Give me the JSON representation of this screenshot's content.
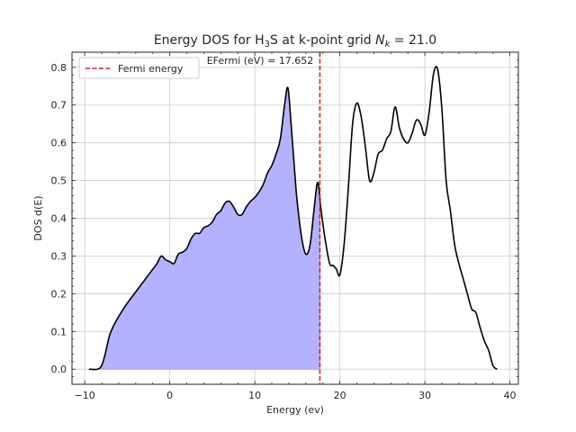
{
  "chart_data": {
    "type": "line",
    "title_parts": [
      "Energy DOS for H",
      "3",
      "S at k-point grid ",
      "N",
      "k",
      " = 21.0"
    ],
    "xlabel": "Energy (ev)",
    "ylabel": "DOS d(E)",
    "xlim": [
      -11.5,
      41
    ],
    "ylim": [
      -0.04,
      0.84
    ],
    "xticks": [
      -10,
      0,
      10,
      20,
      30,
      40
    ],
    "yticks": [
      0.0,
      0.1,
      0.2,
      0.3,
      0.4,
      0.5,
      0.6,
      0.7,
      0.8
    ],
    "grid": true,
    "legend": {
      "position": "top-left",
      "entries": [
        {
          "label": "Fermi energy",
          "color": "#e41a1c",
          "style": "dashed"
        }
      ]
    },
    "annotation": "EFermi (eV) = 17.652",
    "fermi_energy": 17.652,
    "colors": {
      "line": "#000000",
      "fill": "#b2b2ff",
      "fermi": "#e41a1c"
    },
    "series": [
      {
        "x": [
          -9.5,
          -8.5,
          -8.0,
          -7.6,
          -7.3,
          -7.0,
          -6.5,
          -6.0,
          -5.0,
          -4.0,
          -3.0,
          -2.5,
          -2.0,
          -1.5,
          -1.0,
          -0.5,
          0.0,
          0.5,
          1.0,
          1.5,
          2.0,
          2.5,
          3.0,
          3.5,
          4.0,
          4.5,
          5.0,
          5.5,
          6.0,
          6.5,
          7.0,
          7.5,
          8.0,
          8.5,
          9.0,
          9.5,
          10.0,
          10.5,
          11.0,
          11.5,
          12.0,
          12.5,
          13.0,
          13.5,
          13.9,
          14.3,
          14.7,
          15.0,
          15.5,
          16.0,
          16.5,
          17.0,
          17.4,
          17.8,
          18.3,
          18.8,
          19.2,
          19.6,
          20.0,
          20.5,
          21.0,
          21.5,
          22.0,
          22.5,
          23.0,
          23.5,
          24.0,
          24.5,
          25.0,
          25.5,
          26.0,
          26.5,
          27.0,
          27.5,
          28.0,
          28.5,
          29.0,
          29.5,
          30.0,
          30.5,
          31.0,
          31.5,
          32.0,
          32.5,
          33.0,
          33.5,
          34.0,
          34.5,
          35.0,
          35.5,
          36.0,
          36.5,
          37.0,
          37.5,
          38.0,
          38.5
        ],
        "y": [
          0.0,
          0.0,
          0.01,
          0.04,
          0.07,
          0.095,
          0.12,
          0.14,
          0.175,
          0.205,
          0.235,
          0.25,
          0.265,
          0.28,
          0.3,
          0.29,
          0.285,
          0.28,
          0.305,
          0.31,
          0.32,
          0.345,
          0.36,
          0.36,
          0.375,
          0.38,
          0.39,
          0.41,
          0.42,
          0.44,
          0.445,
          0.43,
          0.41,
          0.41,
          0.43,
          0.445,
          0.455,
          0.47,
          0.49,
          0.52,
          0.54,
          0.57,
          0.61,
          0.7,
          0.745,
          0.64,
          0.52,
          0.44,
          0.35,
          0.305,
          0.33,
          0.43,
          0.495,
          0.42,
          0.34,
          0.28,
          0.275,
          0.265,
          0.25,
          0.33,
          0.48,
          0.65,
          0.705,
          0.67,
          0.59,
          0.5,
          0.52,
          0.57,
          0.58,
          0.61,
          0.63,
          0.695,
          0.64,
          0.61,
          0.6,
          0.625,
          0.66,
          0.65,
          0.62,
          0.68,
          0.78,
          0.795,
          0.69,
          0.5,
          0.42,
          0.33,
          0.28,
          0.24,
          0.2,
          0.16,
          0.15,
          0.11,
          0.075,
          0.05,
          0.01,
          0.0
        ]
      }
    ]
  }
}
